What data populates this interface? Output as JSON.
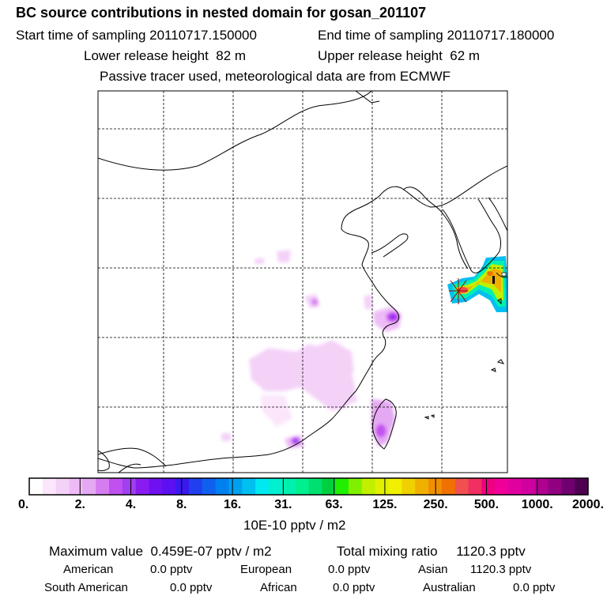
{
  "header": {
    "title": "BC  source contributions in nested domain for gosan_201107",
    "start_label": "Start time of sampling",
    "start_value": "20110717.150000",
    "end_label": "End time of sampling",
    "end_value": "20110717.180000",
    "lower_label": "Lower release height",
    "lower_value": "82 m",
    "upper_label": "Upper release height",
    "upper_value": "62 m",
    "note": "Passive tracer used, meteorological data are from ECMWF"
  },
  "chart_data": {
    "type": "heatmap",
    "map": "East Asia nested domain (China coast, Korea, Taiwan)",
    "grid": "dashed lat/lon lines",
    "source_marker": "gosan",
    "colorbar": {
      "unit": "10E-10 pptv / m2",
      "tick_labels": [
        "0.",
        "2.",
        "4.",
        "8.",
        "16.",
        "31.",
        "63.",
        "125.",
        "250.",
        "500.",
        "1000.",
        "2000."
      ],
      "colors": [
        "#ffffff",
        "#fbe6fb",
        "#f4d2f8",
        "#eebbf6",
        "#e5a8f3",
        "#d47cf0",
        "#c050f0",
        "#a040f0",
        "#8a1cf0",
        "#7010f0",
        "#5a10f0",
        "#3a18f0",
        "#2040f0",
        "#1060f0",
        "#0080f0",
        "#00a0f0",
        "#00c0f0",
        "#00e8f0",
        "#00f0d0",
        "#00f0b0",
        "#00f090",
        "#00e070",
        "#00d040",
        "#20f000",
        "#80f000",
        "#c0f000",
        "#e0f000",
        "#f0f000",
        "#f0d000",
        "#f0b000",
        "#f09000",
        "#f07000",
        "#f05050",
        "#f03060",
        "#f00080",
        "#f00098",
        "#e000a0",
        "#d000a0",
        "#b00090",
        "#900080",
        "#700070",
        "#500050"
      ]
    }
  },
  "footer": {
    "max_label": "Maximum value",
    "max_value": "0.459E-07 pptv / m2",
    "total_label": "Total mixing ratio",
    "total_value": "1120.3 pptv",
    "american_label": "American",
    "american_value": "0.0 pptv",
    "european_label": "European",
    "european_value": "0.0 pptv",
    "asian_label": "Asian",
    "asian_value": "1120.3 pptv",
    "south_american_label": "South American",
    "south_american_value": "0.0 pptv",
    "african_label": "African",
    "african_value": "0.0 pptv",
    "australian_label": "Australian",
    "australian_value": "0.0 pptv"
  }
}
